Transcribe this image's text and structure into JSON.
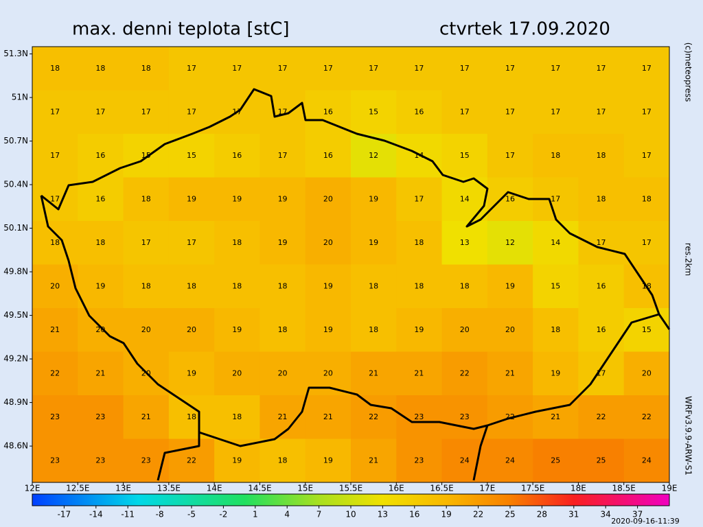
{
  "chart_data": {
    "type": "heatmap",
    "title": "max. denni teplota [stC]",
    "subtitle": "ctvrtek 17.09.2020",
    "credit": "(c)meteopress",
    "resolution": "res.2km",
    "model": "WRFv3.9.9-ARW-S1",
    "timestamp": "2020-09-16-11:39",
    "xlim": [
      12,
      19
    ],
    "ylim": [
      48.35,
      51.35
    ],
    "xticks": [
      {
        "value": 12,
        "label": "12E"
      },
      {
        "value": 12.5,
        "label": "12.5E"
      },
      {
        "value": 13,
        "label": "13E"
      },
      {
        "value": 13.5,
        "label": "13.5E"
      },
      {
        "value": 14,
        "label": "14E"
      },
      {
        "value": 14.5,
        "label": "14.5E"
      },
      {
        "value": 15,
        "label": "15E"
      },
      {
        "value": 15.5,
        "label": "15.5E"
      },
      {
        "value": 16,
        "label": "16E"
      },
      {
        "value": 16.5,
        "label": "16.5E"
      },
      {
        "value": 17,
        "label": "17E"
      },
      {
        "value": 17.5,
        "label": "17.5E"
      },
      {
        "value": 18,
        "label": "18E"
      },
      {
        "value": 18.5,
        "label": "18.5E"
      },
      {
        "value": 19,
        "label": "19E"
      }
    ],
    "yticks": [
      {
        "value": 51.3,
        "label": "51.3N"
      },
      {
        "value": 51,
        "label": "51N"
      },
      {
        "value": 50.7,
        "label": "50.7N"
      },
      {
        "value": 50.4,
        "label": "50.4N"
      },
      {
        "value": 50.1,
        "label": "50.1N"
      },
      {
        "value": 49.8,
        "label": "49.8N"
      },
      {
        "value": 49.5,
        "label": "49.5N"
      },
      {
        "value": 49.2,
        "label": "49.2N"
      },
      {
        "value": 48.9,
        "label": "48.9N"
      },
      {
        "value": 48.6,
        "label": "48.6N"
      }
    ],
    "x": [
      12.25,
      12.75,
      13.25,
      13.75,
      14.25,
      14.75,
      15.25,
      15.75,
      16.25,
      16.75,
      17.25,
      17.75,
      18.25,
      18.75
    ],
    "y": [
      51.2,
      50.9,
      50.6,
      50.3,
      50.0,
      49.7,
      49.4,
      49.1,
      48.8,
      48.5
    ],
    "values": [
      [
        18,
        18,
        18,
        17,
        17,
        17,
        17,
        17,
        17,
        17,
        17,
        17,
        17,
        17
      ],
      [
        17,
        17,
        17,
        17,
        17,
        17,
        16,
        15,
        16,
        17,
        17,
        17,
        17,
        17
      ],
      [
        17,
        16,
        15,
        15,
        16,
        17,
        16,
        12,
        14,
        15,
        17,
        18,
        18,
        17
      ],
      [
        17,
        16,
        18,
        19,
        19,
        19,
        20,
        19,
        17,
        14,
        16,
        17,
        18,
        18
      ],
      [
        18,
        18,
        17,
        17,
        18,
        19,
        20,
        19,
        18,
        13,
        12,
        14,
        17,
        17
      ],
      [
        20,
        19,
        18,
        18,
        18,
        18,
        19,
        18,
        18,
        18,
        19,
        15,
        16,
        18
      ],
      [
        21,
        20,
        20,
        20,
        19,
        18,
        19,
        18,
        19,
        20,
        20,
        18,
        16,
        15
      ],
      [
        22,
        21,
        20,
        19,
        20,
        20,
        20,
        21,
        21,
        22,
        21,
        19,
        17,
        20
      ],
      [
        23,
        23,
        21,
        18,
        18,
        21,
        21,
        22,
        23,
        23,
        22,
        21,
        22,
        22
      ],
      [
        23,
        23,
        23,
        22,
        19,
        18,
        19,
        21,
        23,
        24,
        24,
        25,
        25,
        24
      ]
    ],
    "colorbar_lim": [
      -20,
      40
    ],
    "colorbar_ticks": [
      -17,
      -14,
      -11,
      -8,
      -5,
      -2,
      1,
      4,
      7,
      10,
      13,
      16,
      19,
      22,
      25,
      28,
      31,
      34,
      37
    ],
    "colorscale": [
      {
        "value": -20,
        "color": "#0040ff"
      },
      {
        "value": -10,
        "color": "#00d8e8"
      },
      {
        "value": 0,
        "color": "#20e060"
      },
      {
        "value": 7,
        "color": "#a8e020"
      },
      {
        "value": 13,
        "color": "#f0e000"
      },
      {
        "value": 19,
        "color": "#f8b800"
      },
      {
        "value": 25,
        "color": "#f88000"
      },
      {
        "value": 31,
        "color": "#f82020"
      },
      {
        "value": 40,
        "color": "#f000c0"
      }
    ]
  }
}
